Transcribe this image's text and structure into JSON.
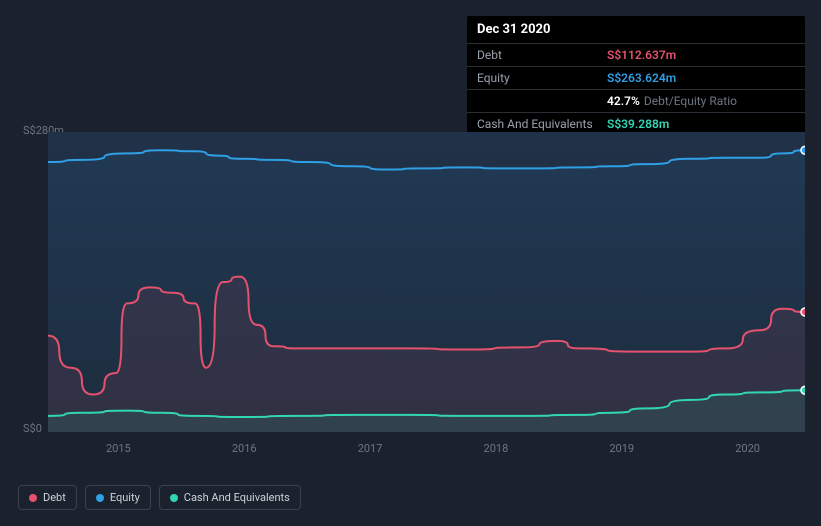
{
  "tooltip": {
    "date": "Dec 31 2020",
    "rows": [
      {
        "label": "Debt",
        "value": "S$112.637m",
        "color": "#e6526e"
      },
      {
        "label": "Equity",
        "value": "S$263.624m",
        "color": "#2f9fe6"
      },
      {
        "label": "",
        "ratio_value": "42.7%",
        "ratio_label": "Debt/Equity Ratio"
      },
      {
        "label": "Cash And Equivalents",
        "value": "S$39.288m",
        "color": "#33d6b4"
      }
    ]
  },
  "chart": {
    "y_axis": {
      "top_label": "S$280m",
      "bottom_label": "S$0"
    },
    "x_ticks": [
      "2015",
      "2016",
      "2017",
      "2018",
      "2019",
      "2020"
    ],
    "plot_bg_top": "#203249",
    "plot_bg_bottom": "#1c2430",
    "grid_color": "#2a3240",
    "xlim": [
      2014.3,
      2021.0
    ],
    "ylim": [
      0,
      280
    ],
    "series": {
      "equity": {
        "color": "#2f9fe6",
        "fill": "rgba(47,159,230,0.08)",
        "points": [
          [
            2014.3,
            252
          ],
          [
            2014.6,
            254
          ],
          [
            2015.0,
            260
          ],
          [
            2015.3,
            263
          ],
          [
            2015.6,
            262
          ],
          [
            2015.8,
            258
          ],
          [
            2016.0,
            255
          ],
          [
            2016.3,
            254
          ],
          [
            2016.6,
            252
          ],
          [
            2017.0,
            248
          ],
          [
            2017.3,
            245
          ],
          [
            2017.6,
            246
          ],
          [
            2018.0,
            247
          ],
          [
            2018.3,
            246
          ],
          [
            2018.6,
            246
          ],
          [
            2019.0,
            247
          ],
          [
            2019.3,
            248
          ],
          [
            2019.6,
            250
          ],
          [
            2020.0,
            255
          ],
          [
            2020.3,
            256
          ],
          [
            2020.6,
            256
          ],
          [
            2020.8,
            260
          ],
          [
            2021.0,
            263
          ]
        ]
      },
      "debt": {
        "color": "#e6526e",
        "fill": "rgba(230,82,110,0.10)",
        "points": [
          [
            2014.3,
            90
          ],
          [
            2014.5,
            60
          ],
          [
            2014.7,
            35
          ],
          [
            2014.9,
            55
          ],
          [
            2015.0,
            120
          ],
          [
            2015.2,
            135
          ],
          [
            2015.4,
            130
          ],
          [
            2015.6,
            120
          ],
          [
            2015.7,
            60
          ],
          [
            2015.85,
            140
          ],
          [
            2016.0,
            145
          ],
          [
            2016.15,
            100
          ],
          [
            2016.3,
            80
          ],
          [
            2016.5,
            78
          ],
          [
            2017.0,
            78
          ],
          [
            2017.5,
            78
          ],
          [
            2018.0,
            77
          ],
          [
            2018.5,
            79
          ],
          [
            2018.8,
            85
          ],
          [
            2019.0,
            78
          ],
          [
            2019.5,
            75
          ],
          [
            2020.0,
            75
          ],
          [
            2020.3,
            78
          ],
          [
            2020.6,
            95
          ],
          [
            2020.8,
            115
          ],
          [
            2021.0,
            112
          ]
        ]
      },
      "cash": {
        "color": "#33d6b4",
        "fill": "rgba(51,214,180,0.10)",
        "points": [
          [
            2014.3,
            15
          ],
          [
            2014.6,
            18
          ],
          [
            2015.0,
            20
          ],
          [
            2015.3,
            18
          ],
          [
            2015.6,
            15
          ],
          [
            2016.0,
            14
          ],
          [
            2016.5,
            15
          ],
          [
            2017.0,
            16
          ],
          [
            2017.5,
            16
          ],
          [
            2018.0,
            15
          ],
          [
            2018.5,
            15
          ],
          [
            2019.0,
            16
          ],
          [
            2019.3,
            18
          ],
          [
            2019.6,
            22
          ],
          [
            2020.0,
            30
          ],
          [
            2020.3,
            35
          ],
          [
            2020.6,
            37
          ],
          [
            2021.0,
            39
          ]
        ]
      }
    },
    "end_markers": [
      {
        "series": "equity",
        "color": "#2f9fe6"
      },
      {
        "series": "debt",
        "color": "#e6526e"
      },
      {
        "series": "cash",
        "color": "#33d6b4"
      }
    ]
  },
  "legend": [
    {
      "label": "Debt",
      "color": "#e6526e"
    },
    {
      "label": "Equity",
      "color": "#2f9fe6"
    },
    {
      "label": "Cash And Equivalents",
      "color": "#33d6b4"
    }
  ]
}
